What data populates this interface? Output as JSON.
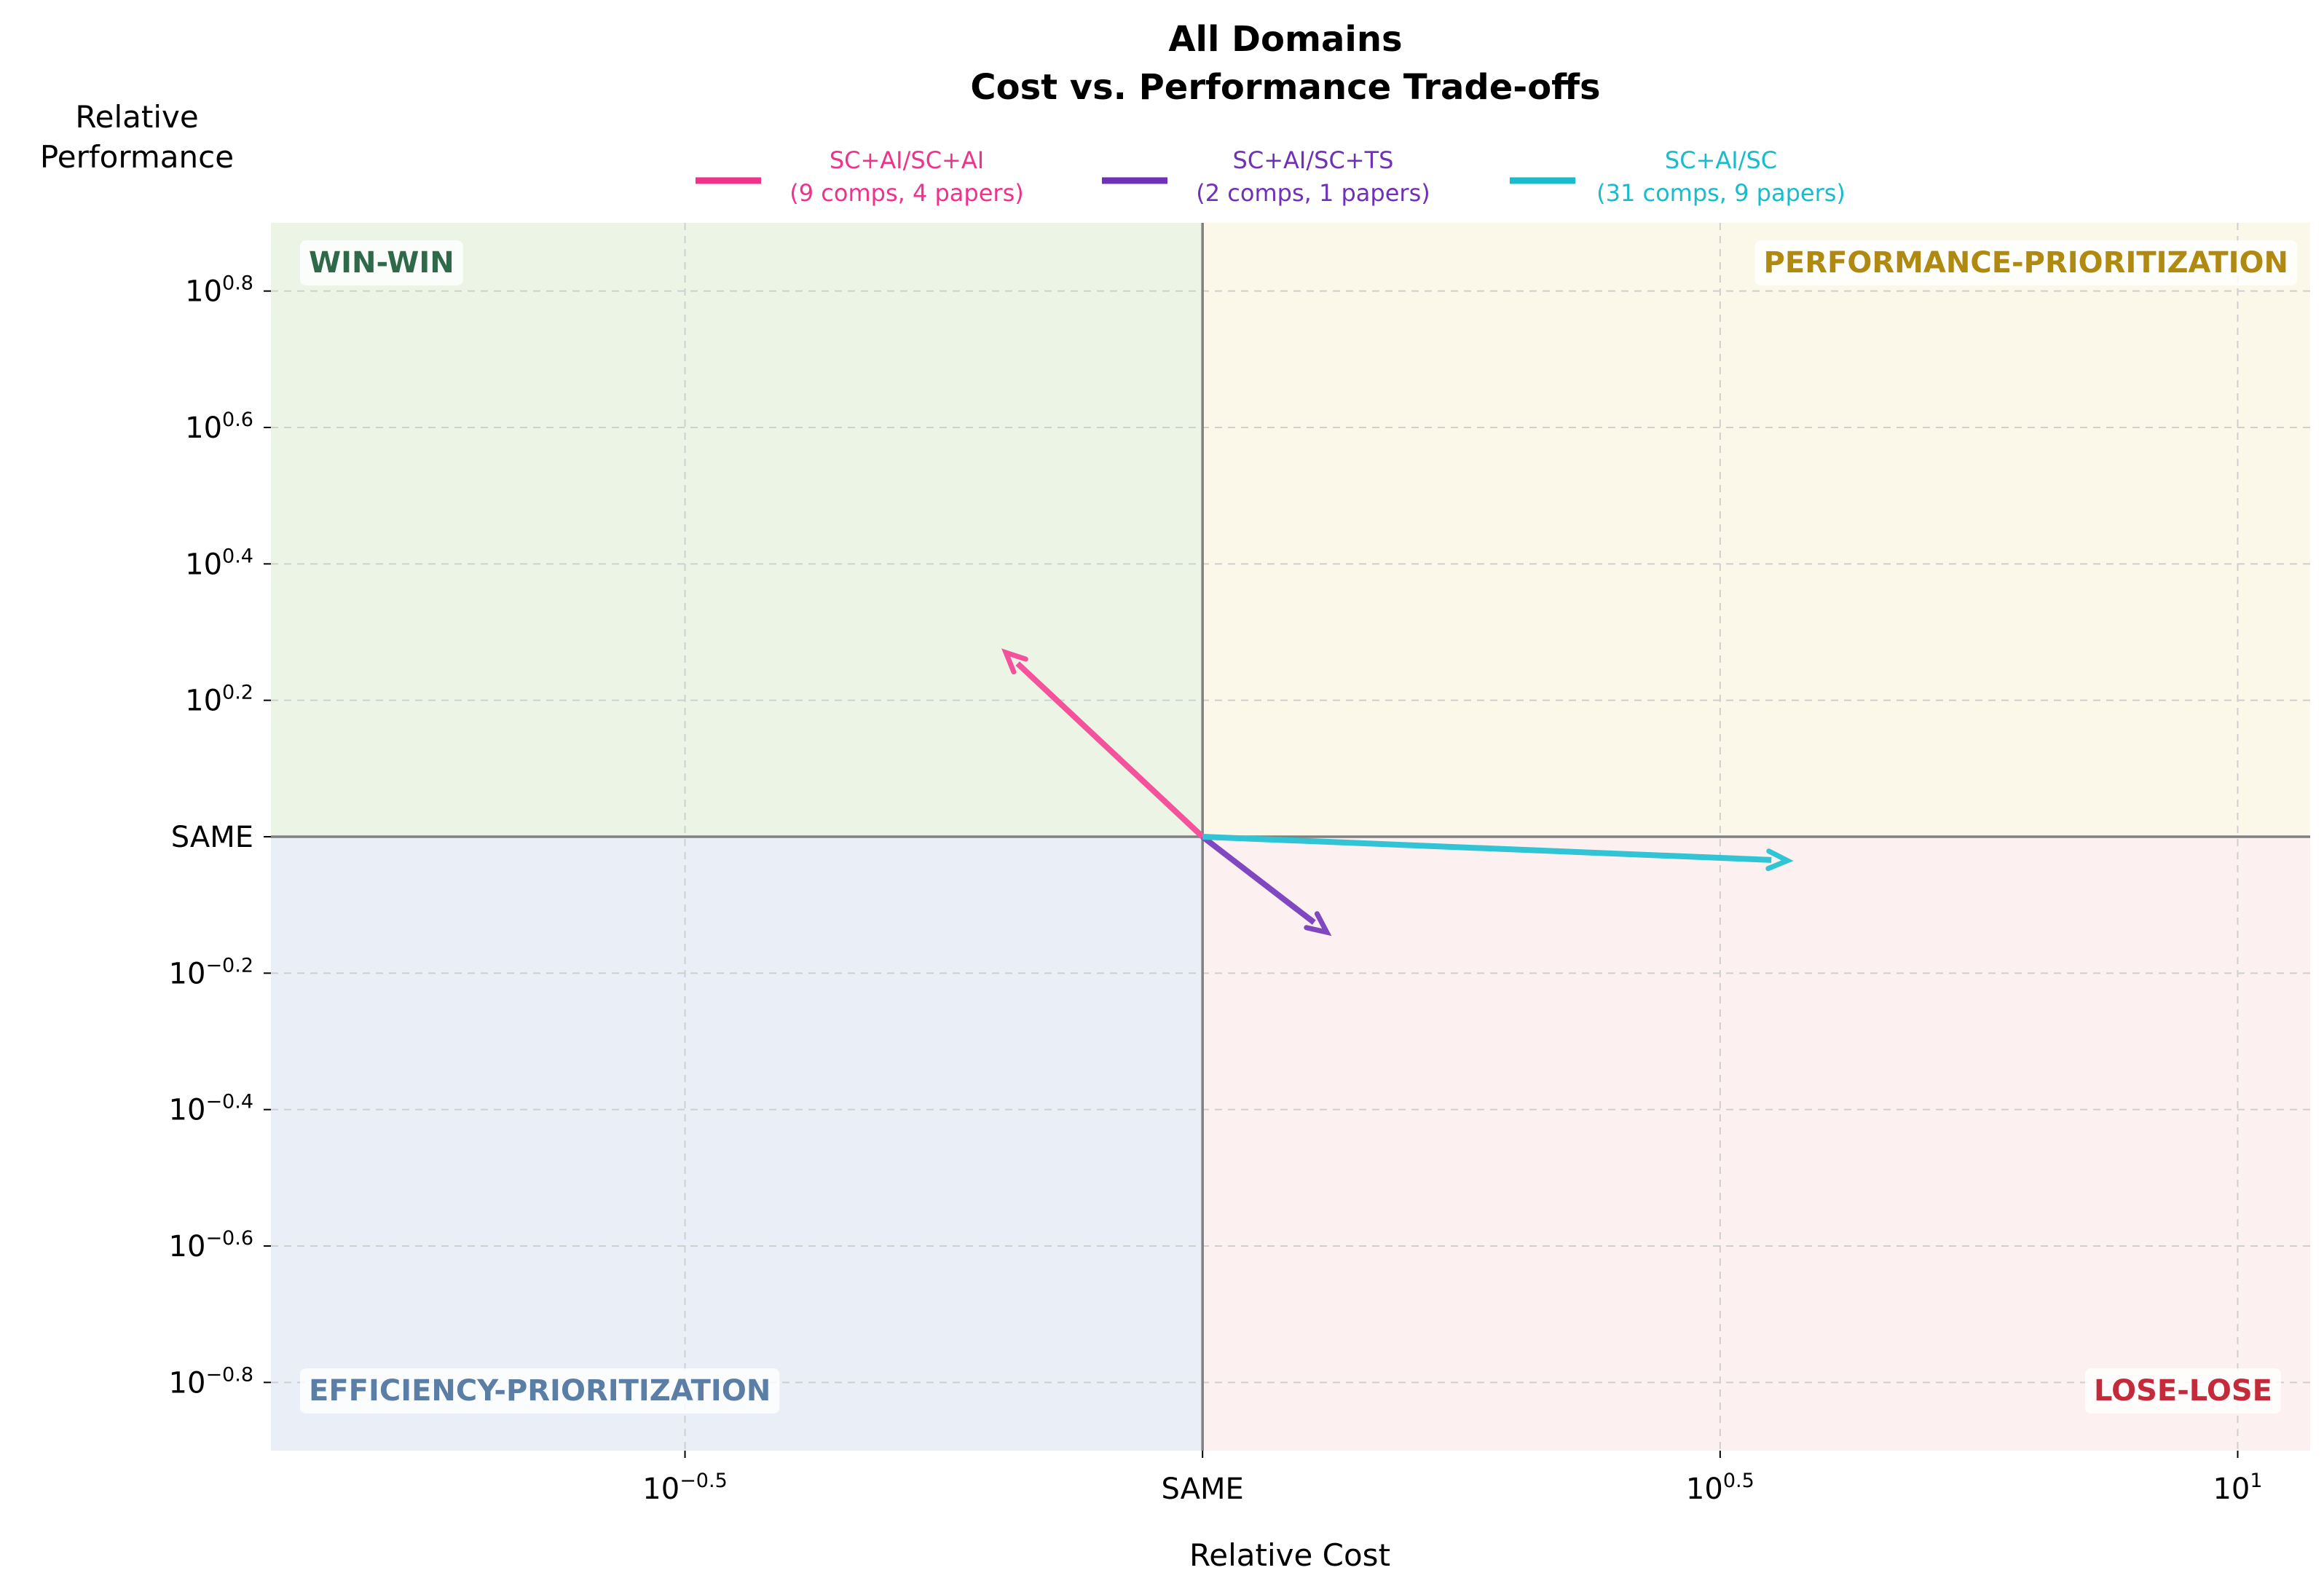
{
  "chart_data": {
    "type": "quiver",
    "title": "All Domains",
    "subtitle": "Cost vs. Performance Trade-offs",
    "xlabel": "Relative Cost",
    "ylabel_line1": "Relative",
    "ylabel_line2": "Performance",
    "x_scale": "log10",
    "y_scale": "log10",
    "xlim_log10": [
      -0.9,
      1.07
    ],
    "ylim_log10": [
      -0.9,
      0.9
    ],
    "x_ticks": [
      {
        "base": "10",
        "exp": "−0.5",
        "value": -0.5,
        "same": false
      },
      {
        "label": "SAME",
        "value": 0,
        "same": true
      },
      {
        "base": "10",
        "exp": "0.5",
        "value": 0.5,
        "same": false
      },
      {
        "base": "10",
        "exp": "1",
        "value": 1,
        "same": false
      }
    ],
    "y_ticks": [
      {
        "base": "10",
        "exp": "0.8",
        "value": 0.8,
        "same": false
      },
      {
        "base": "10",
        "exp": "0.6",
        "value": 0.6,
        "same": false
      },
      {
        "base": "10",
        "exp": "0.4",
        "value": 0.4,
        "same": false
      },
      {
        "base": "10",
        "exp": "0.2",
        "value": 0.2,
        "same": false
      },
      {
        "label": "SAME",
        "value": 0,
        "same": true
      },
      {
        "base": "10",
        "exp": "−0.2",
        "value": -0.2,
        "same": false
      },
      {
        "base": "10",
        "exp": "−0.4",
        "value": -0.4,
        "same": false
      },
      {
        "base": "10",
        "exp": "−0.6",
        "value": -0.6,
        "same": false
      },
      {
        "base": "10",
        "exp": "−0.8",
        "value": -0.8,
        "same": false
      }
    ],
    "grid": true,
    "legend_position": "top-center",
    "series": [
      {
        "name": "SC+AI/SC+AI",
        "detail": "(9 comps, 4 papers)",
        "color": "#f0328c",
        "arrow_color": "#f4529a",
        "from": [
          0,
          0
        ],
        "to": [
          -0.19,
          0.27
        ]
      },
      {
        "name": "SC+AI/SC+TS",
        "detail": "(2 comps, 1 papers)",
        "color": "#7030b8",
        "arrow_color": "#8048c0",
        "from": [
          0,
          0
        ],
        "to": [
          0.12,
          -0.14
        ]
      },
      {
        "name": "SC+AI/SC",
        "detail": "(31 comps, 9 papers)",
        "color": "#18bccc",
        "arrow_color": "#30c4d4",
        "from": [
          0,
          0
        ],
        "to": [
          0.565,
          -0.035
        ]
      }
    ],
    "quadrants": [
      {
        "key": "win-win",
        "label": "WIN-WIN",
        "text_color": "#2e6a4a",
        "fill": "#ecf4e6"
      },
      {
        "key": "performance-prioritization",
        "label": "PERFORMANCE-PRIORITIZATION",
        "text_color": "#b08a10",
        "fill": "#fbf8ea"
      },
      {
        "key": "efficiency-prioritization",
        "label": "EFFICIENCY-PRIORITIZATION",
        "text_color": "#5a7ea6",
        "fill": "#eaeef6"
      },
      {
        "key": "lose-lose",
        "label": "LOSE-LOSE",
        "text_color": "#c42a3a",
        "fill": "#fdf0f0"
      }
    ]
  }
}
